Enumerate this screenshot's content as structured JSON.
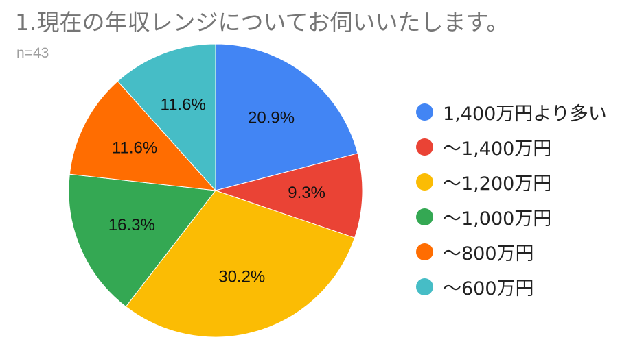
{
  "title": "1.現在の年収レンジについてお伺いいたします。",
  "subtitle": "n=43",
  "chart_data": {
    "type": "pie",
    "title": "1.現在の年収レンジについてお伺いいたします。",
    "subtitle": "n=43",
    "categories": [
      "1,400万円より多い",
      "〜1,400万円",
      "〜1,200万円",
      "〜1,000万円",
      "〜800万円",
      "〜600万円"
    ],
    "values": [
      20.9,
      9.3,
      30.2,
      16.3,
      11.6,
      11.6
    ],
    "labels": [
      "20.9%",
      "9.3%",
      "30.2%",
      "16.3%",
      "11.6%",
      "11.6%"
    ],
    "colors": [
      "#4285f4",
      "#ea4335",
      "#fbbc04",
      "#34a853",
      "#ff6d01",
      "#46bdc6"
    ],
    "legend_position": "right"
  }
}
